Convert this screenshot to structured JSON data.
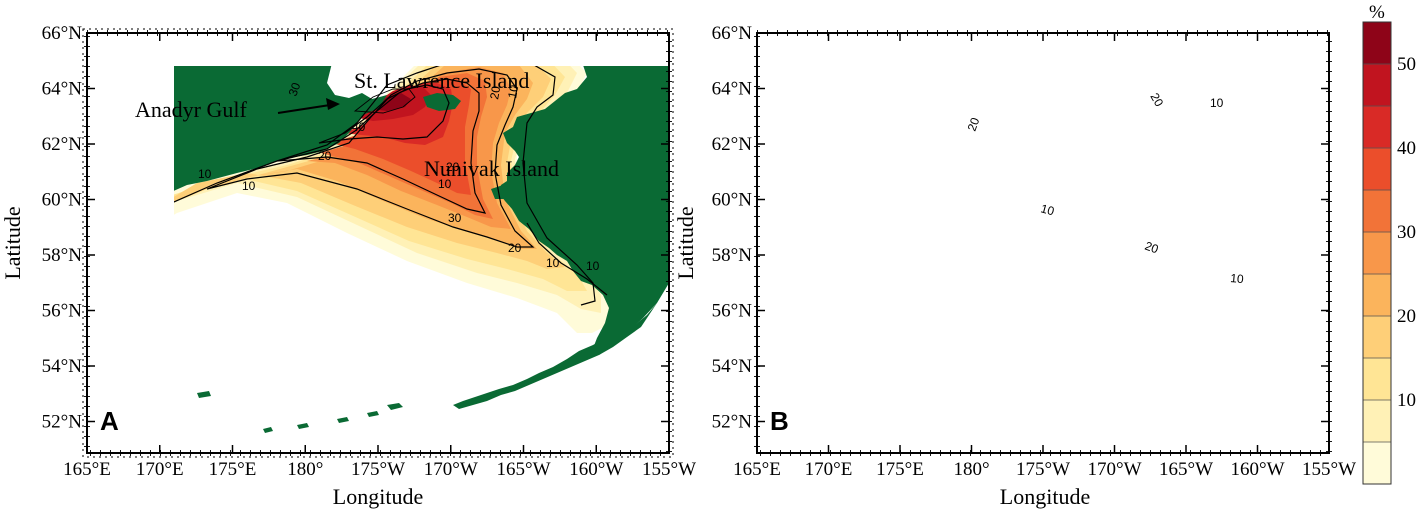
{
  "panels": [
    {
      "letter": "A",
      "x_label": "Longitude",
      "y_label": "Latitude",
      "annotations": {
        "gulf": "Anadyr Gulf",
        "st_lawrence": "St. Lawrence Island",
        "nunivak": "Nunivak Island"
      },
      "contour_labels": [
        "30",
        "40",
        "20",
        "10",
        "10",
        "20",
        "30",
        "20",
        "10",
        "10",
        "10",
        "20",
        "10"
      ]
    },
    {
      "letter": "B",
      "x_label": "Longitude",
      "y_label": "Latitude",
      "annotations": {},
      "contour_labels": [
        "20",
        "20",
        "10",
        "10",
        "20",
        "10"
      ]
    }
  ],
  "x_ticks": [
    "165°E",
    "170°E",
    "175°E",
    "180°",
    "175°W",
    "170°W",
    "165°W",
    "160°W",
    "155°W"
  ],
  "y_ticks": [
    "66°N",
    "64°N",
    "62°N",
    "60°N",
    "58°N",
    "56°N",
    "54°N",
    "52°N"
  ],
  "colorbar": {
    "unit": "%",
    "tick_labels": [
      "10",
      "20",
      "30",
      "40",
      "50"
    ],
    "colors": [
      "#fffbd9",
      "#fff1b6",
      "#ffe595",
      "#fecf78",
      "#fbb45c",
      "#f8974a",
      "#f27338",
      "#eb4e2b",
      "#d92a26",
      "#c1141f",
      "#8e0418"
    ]
  },
  "land_color": "#0a6a34"
}
